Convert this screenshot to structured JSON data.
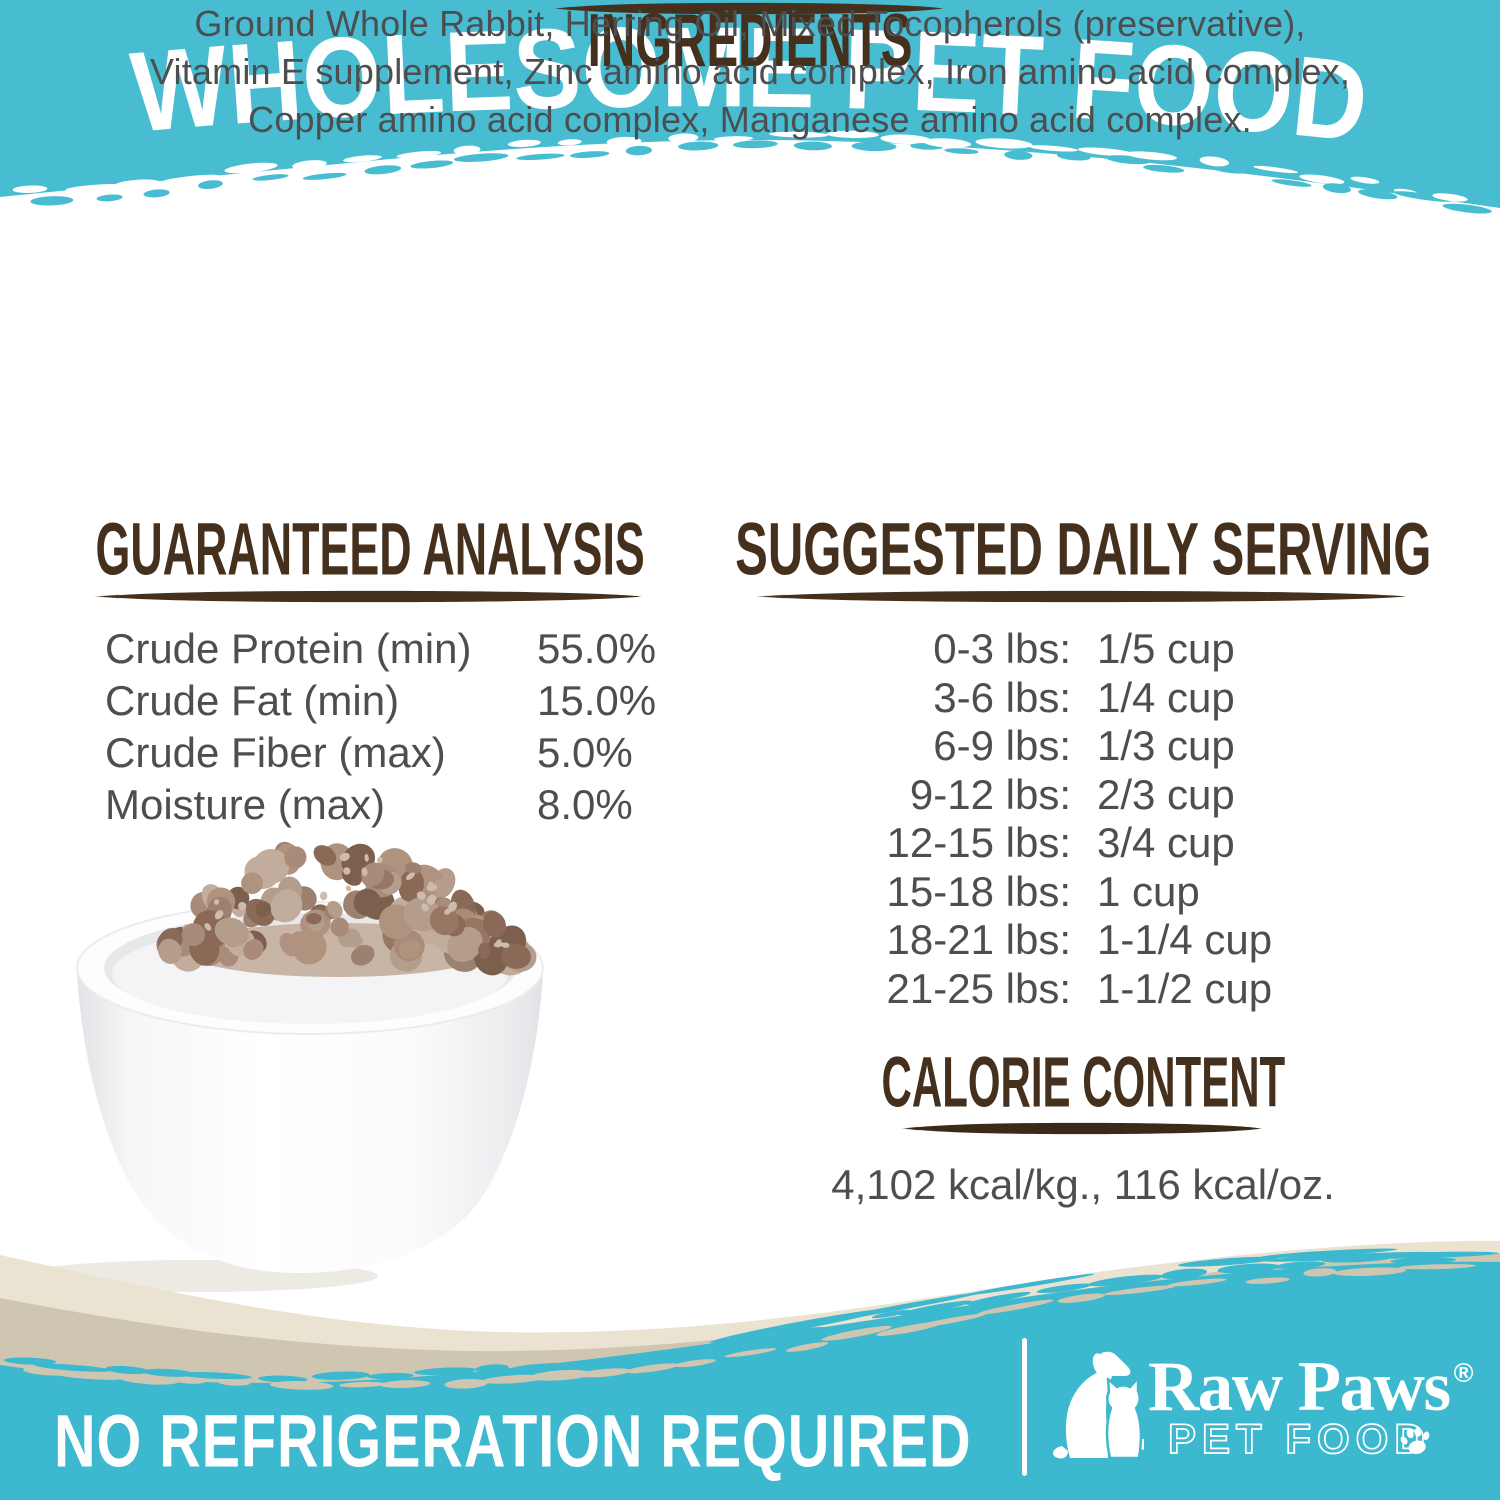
{
  "colors": {
    "teal_top": "#48bdd2",
    "teal_bottom": "#3cb8cf",
    "heading_brown": "#44301c",
    "body_gray": "#4d4e50",
    "cream_wave": "#eae3d2",
    "taupe_wave": "#cfc6b1",
    "white": "#ffffff"
  },
  "header": {
    "title": "WHOLESOME PET FOOD"
  },
  "ingredients": {
    "heading": "INGREDIENTS",
    "lines": [
      "Ground Whole Rabbit, Herring Oil, Mixed Tocopherols (preservative),",
      "Vitamin E supplement, Zinc amino acid complex, Iron amino acid complex,",
      "Copper amino acid complex, Manganese amino acid complex."
    ]
  },
  "guaranteed_analysis": {
    "heading": "GUARANTEED ANALYSIS",
    "rows": [
      {
        "label": "Crude Protein (min)",
        "value": "55.0%"
      },
      {
        "label": "Crude Fat (min)",
        "value": "15.0%"
      },
      {
        "label": "Crude Fiber (max)",
        "value": "5.0%"
      },
      {
        "label": "Moisture (max)",
        "value": "8.0%"
      }
    ]
  },
  "daily_serving": {
    "heading": "SUGGESTED DAILY SERVING",
    "rows": [
      {
        "range": "0-3 lbs:",
        "amount": "1/5 cup"
      },
      {
        "range": "3-6 lbs:",
        "amount": "1/4 cup"
      },
      {
        "range": "6-9 lbs:",
        "amount": "1/3 cup"
      },
      {
        "range": "9-12 lbs:",
        "amount": "2/3 cup"
      },
      {
        "range": "12-15 lbs:",
        "amount": "3/4 cup"
      },
      {
        "range": "15-18 lbs:",
        "amount": "1 cup"
      },
      {
        "range": "18-21 lbs:",
        "amount": "1-1/4 cup"
      },
      {
        "range": "21-25 lbs:",
        "amount": "1-1/2 cup"
      }
    ]
  },
  "calorie_content": {
    "heading": "CALORIE CONTENT",
    "text": "4,102 kcal/kg., 116 kcal/oz."
  },
  "footer": {
    "no_refrigeration": "NO REFRIGERATION REQUIRED",
    "brand": {
      "name": "Raw Paws",
      "registered": "®",
      "subtitle": "PET FOOD"
    }
  }
}
